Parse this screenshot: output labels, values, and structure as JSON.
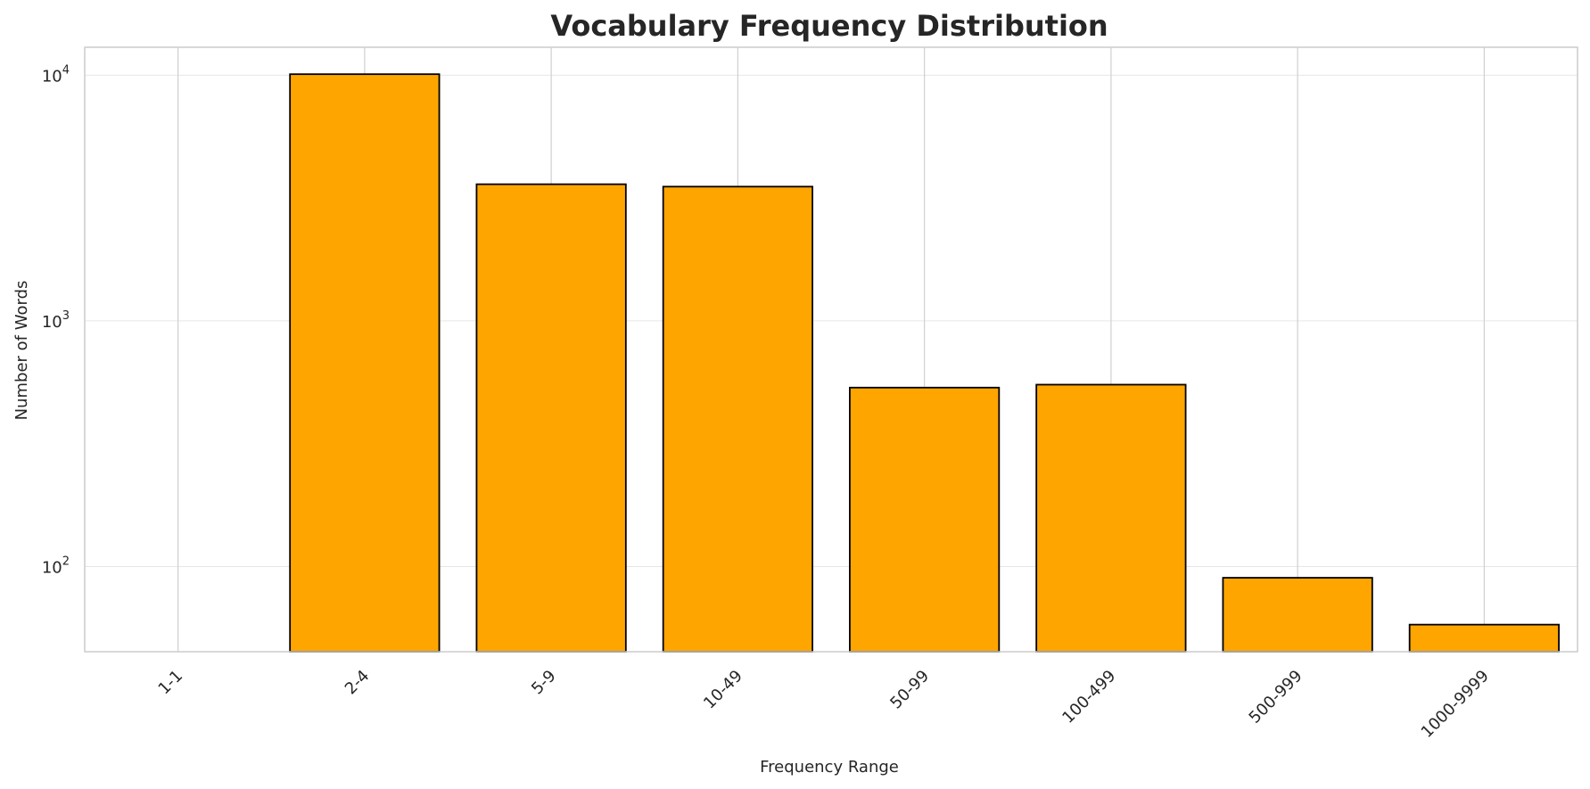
{
  "chart_data": {
    "type": "bar",
    "title": "Vocabulary Frequency Distribution",
    "xlabel": "Frequency Range",
    "ylabel": "Number of Words",
    "yscale": "log",
    "ylim": [
      45,
      13000
    ],
    "categories": [
      "1-1",
      "2-4",
      "5-9",
      "10-49",
      "50-99",
      "100-499",
      "500-999",
      "1000-9999"
    ],
    "values": [
      0,
      10100,
      3600,
      3520,
      535,
      550,
      90,
      58
    ],
    "yticks": [
      {
        "value": 100,
        "base": "10",
        "exp": "2"
      },
      {
        "value": 1000,
        "base": "10",
        "exp": "3"
      },
      {
        "value": 10000,
        "base": "10",
        "exp": "4"
      }
    ],
    "grid": true,
    "legend": "none",
    "colors": {
      "bar_fill": "#FFA500",
      "bar_edge": "#000000",
      "grid": "#E6E6E6",
      "spine": "#CCCCCC",
      "text": "#262626"
    }
  }
}
